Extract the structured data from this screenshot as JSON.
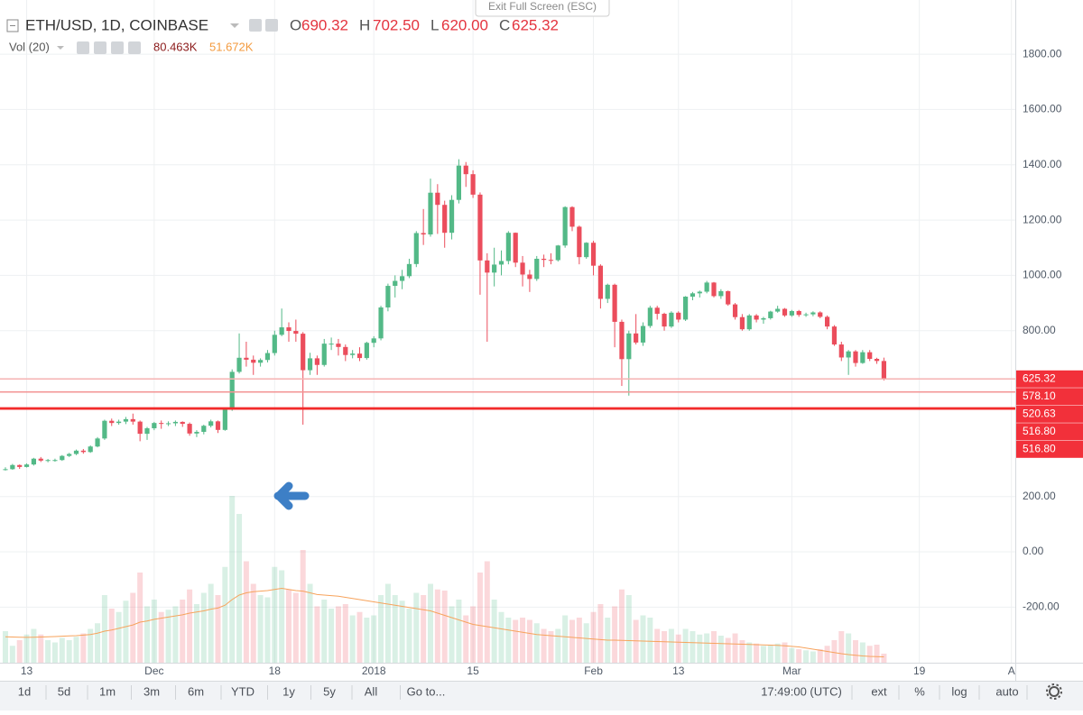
{
  "chart_data": {
    "type": "candlestick",
    "title": "ETH/USD, 1D, COINBASE",
    "ohlc_labels": [
      "O",
      "H",
      "L",
      "C"
    ],
    "ohlc_value_labels": [
      "690.32",
      "702.50",
      "620.00",
      "625.32"
    ],
    "volume_title": "Vol (20)",
    "volume_value_labels": [
      "80.463K",
      "51.672K"
    ],
    "categories": [
      null,
      null,
      null,
      "13",
      null,
      null,
      null,
      null,
      null,
      null,
      null,
      null,
      null,
      null,
      null,
      null,
      null,
      null,
      null,
      null,
      null,
      "Dec",
      null,
      null,
      null,
      null,
      null,
      null,
      null,
      null,
      null,
      null,
      null,
      null,
      null,
      null,
      null,
      null,
      "18",
      null,
      null,
      null,
      null,
      null,
      null,
      null,
      null,
      null,
      null,
      null,
      null,
      null,
      "2018",
      null,
      null,
      null,
      null,
      null,
      null,
      null,
      null,
      null,
      null,
      null,
      null,
      null,
      "15",
      null,
      null,
      null,
      null,
      null,
      null,
      null,
      null,
      null,
      null,
      null,
      null,
      null,
      null,
      null,
      null,
      "Feb",
      null,
      null,
      null,
      null,
      null,
      null,
      null,
      null,
      null,
      null,
      null,
      "13",
      null,
      null,
      null,
      null,
      null,
      null,
      null,
      null,
      null,
      null,
      null,
      null,
      null,
      null,
      null,
      "Mar",
      null,
      null,
      null,
      null,
      null,
      null,
      null,
      null,
      null,
      null,
      null,
      null,
      null,
      null,
      null,
      null,
      null,
      "19",
      null,
      null,
      null,
      null,
      null,
      null,
      null,
      null,
      null,
      null,
      null,
      null,
      "A"
    ],
    "open": [
      298,
      299,
      314,
      307,
      316,
      337,
      330,
      332,
      332,
      347,
      354,
      366,
      361,
      381,
      410,
      474,
      466,
      471,
      480,
      471,
      427,
      447,
      466,
      463,
      465,
      470,
      463,
      428,
      434,
      456,
      472,
      441,
      515,
      651,
      702,
      695,
      684,
      694,
      719,
      785,
      812,
      799,
      789,
      657,
      700,
      676,
      753,
      753,
      741,
      712,
      717,
      701,
      756,
      772,
      884,
      962,
      980,
      997,
      1041,
      1153,
      1148,
      1299,
      1255,
      1154,
      1273,
      1397,
      1366,
      1292,
      1054,
      1010,
      1039,
      1052,
      1154,
      1046,
      1003,
      987,
      1060,
      1056,
      1055,
      1108,
      1247,
      1176,
      1066,
      1118,
      1035,
      915,
      966,
      832,
      697,
      790,
      757,
      817,
      883,
      861,
      815,
      865,
      840,
      923,
      935,
      941,
      974,
      925,
      943,
      895,
      849,
      805,
      855,
      840,
      845,
      869,
      879,
      855,
      871,
      857,
      859,
      866,
      850,
      815,
      750,
      703,
      725,
      683,
      722,
      698,
      690.32,
      null,
      null,
      null,
      null,
      null,
      null,
      null,
      null,
      null,
      null,
      null,
      null,
      null,
      null,
      null,
      null,
      null,
      null
    ],
    "high": [
      306,
      318,
      316,
      320,
      340,
      343,
      336,
      337,
      350,
      358,
      370,
      372,
      385,
      415,
      478,
      482,
      478,
      488,
      500,
      475,
      452,
      470,
      475,
      472,
      475,
      472,
      468,
      440,
      460,
      478,
      475,
      520,
      660,
      790,
      760,
      710,
      700,
      730,
      800,
      880,
      830,
      840,
      795,
      720,
      710,
      770,
      775,
      770,
      750,
      730,
      740,
      760,
      780,
      890,
      970,
      1000,
      1020,
      1060,
      1160,
      1240,
      1350,
      1330,
      1270,
      1290,
      1420,
      1410,
      1380,
      1300,
      1080,
      1100,
      1090,
      1160,
      1155,
      1070,
      1020,
      1070,
      1075,
      1080,
      1110,
      1250,
      1250,
      1180,
      1120,
      1125,
      1040,
      970,
      970,
      840,
      800,
      860,
      830,
      890,
      890,
      865,
      870,
      870,
      925,
      940,
      945,
      980,
      976,
      950,
      945,
      900,
      860,
      860,
      860,
      850,
      872,
      890,
      882,
      875,
      875,
      865,
      870,
      870,
      855,
      820,
      760,
      730,
      730,
      730,
      730,
      702,
      702.5,
      null,
      null,
      null,
      null,
      null,
      null,
      null,
      null,
      null,
      null,
      null,
      null,
      null,
      null,
      null,
      null,
      null,
      null
    ],
    "low": [
      294,
      297,
      300,
      305,
      312,
      325,
      324,
      326,
      329,
      343,
      350,
      355,
      358,
      378,
      405,
      455,
      460,
      462,
      460,
      400,
      405,
      440,
      445,
      455,
      455,
      452,
      420,
      415,
      425,
      450,
      430,
      438,
      510,
      645,
      670,
      640,
      670,
      685,
      710,
      780,
      760,
      760,
      460,
      640,
      640,
      670,
      730,
      710,
      690,
      700,
      690,
      695,
      740,
      765,
      870,
      920,
      950,
      990,
      1030,
      1110,
      1140,
      1150,
      1100,
      1130,
      1260,
      1320,
      1280,
      930,
      760,
      960,
      1000,
      1040,
      1030,
      960,
      940,
      980,
      1030,
      1040,
      1050,
      1100,
      1160,
      1040,
      1060,
      1000,
      880,
      900,
      740,
      600,
      565,
      750,
      745,
      810,
      840,
      800,
      810,
      830,
      835,
      910,
      920,
      935,
      920,
      915,
      890,
      840,
      800,
      800,
      830,
      825,
      840,
      865,
      850,
      850,
      850,
      850,
      852,
      845,
      805,
      745,
      690,
      640,
      670,
      680,
      690,
      680,
      620,
      null,
      null,
      null,
      null,
      null,
      null,
      null,
      null,
      null,
      null,
      null,
      null,
      null,
      null,
      null,
      null,
      null,
      null
    ],
    "close": [
      299,
      314,
      307,
      316,
      337,
      330,
      332,
      332,
      347,
      354,
      366,
      361,
      381,
      410,
      474,
      466,
      471,
      480,
      471,
      427,
      447,
      466,
      463,
      465,
      470,
      463,
      428,
      434,
      456,
      472,
      441,
      515,
      651,
      702,
      695,
      684,
      694,
      719,
      785,
      812,
      799,
      789,
      657,
      700,
      676,
      753,
      753,
      741,
      712,
      717,
      701,
      756,
      772,
      884,
      962,
      980,
      997,
      1041,
      1153,
      1148,
      1299,
      1255,
      1154,
      1273,
      1397,
      1366,
      1292,
      1054,
      1010,
      1039,
      1052,
      1154,
      1046,
      1003,
      987,
      1060,
      1056,
      1055,
      1108,
      1247,
      1176,
      1066,
      1118,
      1035,
      915,
      966,
      832,
      697,
      790,
      757,
      817,
      883,
      861,
      815,
      865,
      840,
      923,
      935,
      941,
      974,
      925,
      943,
      895,
      849,
      805,
      855,
      840,
      845,
      869,
      879,
      855,
      871,
      857,
      859,
      866,
      850,
      815,
      750,
      703,
      725,
      683,
      722,
      698,
      690.32,
      625.32,
      null,
      null,
      null,
      null,
      null,
      null,
      null,
      null,
      null,
      null,
      null,
      null,
      null,
      null,
      null,
      null,
      null,
      null
    ],
    "volume": [
      280,
      150,
      200,
      250,
      300,
      250,
      200,
      180,
      220,
      200,
      230,
      260,
      300,
      350,
      600,
      480,
      450,
      550,
      620,
      800,
      500,
      560,
      450,
      470,
      500,
      560,
      650,
      520,
      620,
      700,
      600,
      850,
      1480,
      1320,
      900,
      700,
      600,
      580,
      850,
      820,
      650,
      620,
      1000,
      700,
      500,
      560,
      480,
      500,
      520,
      420,
      450,
      400,
      420,
      600,
      700,
      600,
      550,
      480,
      620,
      600,
      700,
      650,
      640,
      500,
      560,
      420,
      500,
      800,
      900,
      560,
      450,
      400,
      380,
      400,
      380,
      350,
      300,
      280,
      300,
      420,
      380,
      400,
      350,
      450,
      520,
      400,
      500,
      650,
      600,
      380,
      420,
      400,
      300,
      280,
      300,
      250,
      300,
      280,
      250,
      260,
      280,
      240,
      220,
      260,
      200,
      180,
      170,
      150,
      160,
      170,
      180,
      130,
      120,
      110,
      100,
      120,
      150,
      200,
      280,
      260,
      200,
      180,
      150,
      160,
      80.463,
      null,
      null,
      null,
      null,
      null,
      null,
      null,
      null,
      null,
      null,
      null,
      null,
      null,
      null,
      null,
      null,
      null,
      null
    ],
    "volume_ma": [
      230,
      228,
      226,
      225,
      226,
      228,
      230,
      232,
      235,
      238,
      240,
      245,
      250,
      262,
      280,
      290,
      305,
      320,
      335,
      360,
      370,
      385,
      395,
      405,
      415,
      425,
      440,
      450,
      460,
      475,
      485,
      510,
      560,
      600,
      620,
      630,
      635,
      640,
      650,
      660,
      650,
      640,
      635,
      620,
      605,
      600,
      595,
      590,
      580,
      570,
      560,
      550,
      540,
      530,
      520,
      510,
      500,
      490,
      480,
      470,
      460,
      440,
      420,
      400,
      380,
      360,
      340,
      330,
      320,
      310,
      300,
      290,
      280,
      270,
      260,
      250,
      245,
      240,
      235,
      230,
      225,
      220,
      215,
      210,
      205,
      200,
      200,
      198,
      196,
      194,
      192,
      190,
      188,
      186,
      184,
      182,
      180,
      178,
      176,
      174,
      172,
      170,
      168,
      166,
      164,
      162,
      160,
      158,
      156,
      154,
      150,
      145,
      140,
      130,
      120,
      110,
      100,
      90,
      80,
      72,
      66,
      60,
      56,
      54,
      51.672,
      null,
      null,
      null,
      null,
      null,
      null,
      null,
      null,
      null,
      null,
      null,
      null,
      null,
      null,
      null,
      null,
      null,
      null
    ],
    "up_color": "#53b987",
    "down_color": "#eb4d5c",
    "ma_color": "#f7a35c",
    "ylim": [
      -401,
      1996
    ],
    "yticks": [
      {
        "value": -200,
        "label": "-200.00"
      },
      {
        "value": 0,
        "label": "0.00"
      },
      {
        "value": 200,
        "label": "200.00"
      },
      {
        "value": 800,
        "label": "800.00"
      },
      {
        "value": 1000,
        "label": "1000.00"
      },
      {
        "value": 1200,
        "label": "1200.00"
      },
      {
        "value": 1400,
        "label": "1400.00"
      },
      {
        "value": 1600,
        "label": "1600.00"
      },
      {
        "value": 1800,
        "label": "1800.00"
      }
    ],
    "grid": true,
    "price_lines": [
      625.32,
      {
        "value": 578.1,
        "label": "578.10"
      },
      520.63,
      {
        "value": 516.8,
        "label": "516.80"
      },
      {
        "value": 516.8,
        "label": "516.80"
      }
    ],
    "price_line_colors": [
      "#f6b3b3",
      "#f39494",
      "#f22b2b",
      "#f22b2b",
      "#f22b2b"
    ],
    "tag_color": "#f2303a"
  },
  "exit_fullscreen": "Exit Full Screen (ESC)",
  "toolbar": {
    "left": [
      "1d",
      "5d",
      "1m",
      "3m",
      "6m",
      "YTD",
      "1y",
      "5y",
      "All",
      "Go to..."
    ],
    "right": [
      "17:49:00 (UTC)",
      "ext",
      "%",
      "log",
      "auto"
    ]
  }
}
